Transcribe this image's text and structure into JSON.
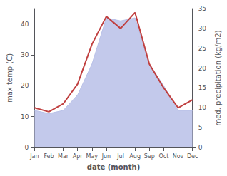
{
  "chart_data": {
    "type": "line",
    "xlabel": "date (month)",
    "ylabel": "max temp (C)",
    "y2label": "med. precipitation (kg/m2)",
    "categories": [
      "Jan",
      "Feb",
      "Mar",
      "Apr",
      "May",
      "Jun",
      "Jul",
      "Aug",
      "Sep",
      "Oct",
      "Nov",
      "Dec"
    ],
    "series": [
      {
        "type": "area",
        "color": "#b8c0e8",
        "values": [
          12,
          11,
          12,
          17,
          27,
          42,
          41,
          42,
          27,
          20,
          12,
          12
        ]
      },
      {
        "type": "line",
        "color": "#c04040",
        "axis": "y2",
        "values": [
          10,
          9,
          11,
          16,
          26,
          33,
          30,
          34,
          21,
          15,
          10,
          12
        ]
      }
    ],
    "ylim": [
      0,
      45
    ],
    "yticks": [
      0,
      10,
      20,
      30,
      40
    ],
    "y2lim": [
      0,
      35
    ],
    "y2ticks": [
      0,
      5,
      10,
      15,
      20,
      25,
      30,
      35
    ],
    "grid": false
  }
}
